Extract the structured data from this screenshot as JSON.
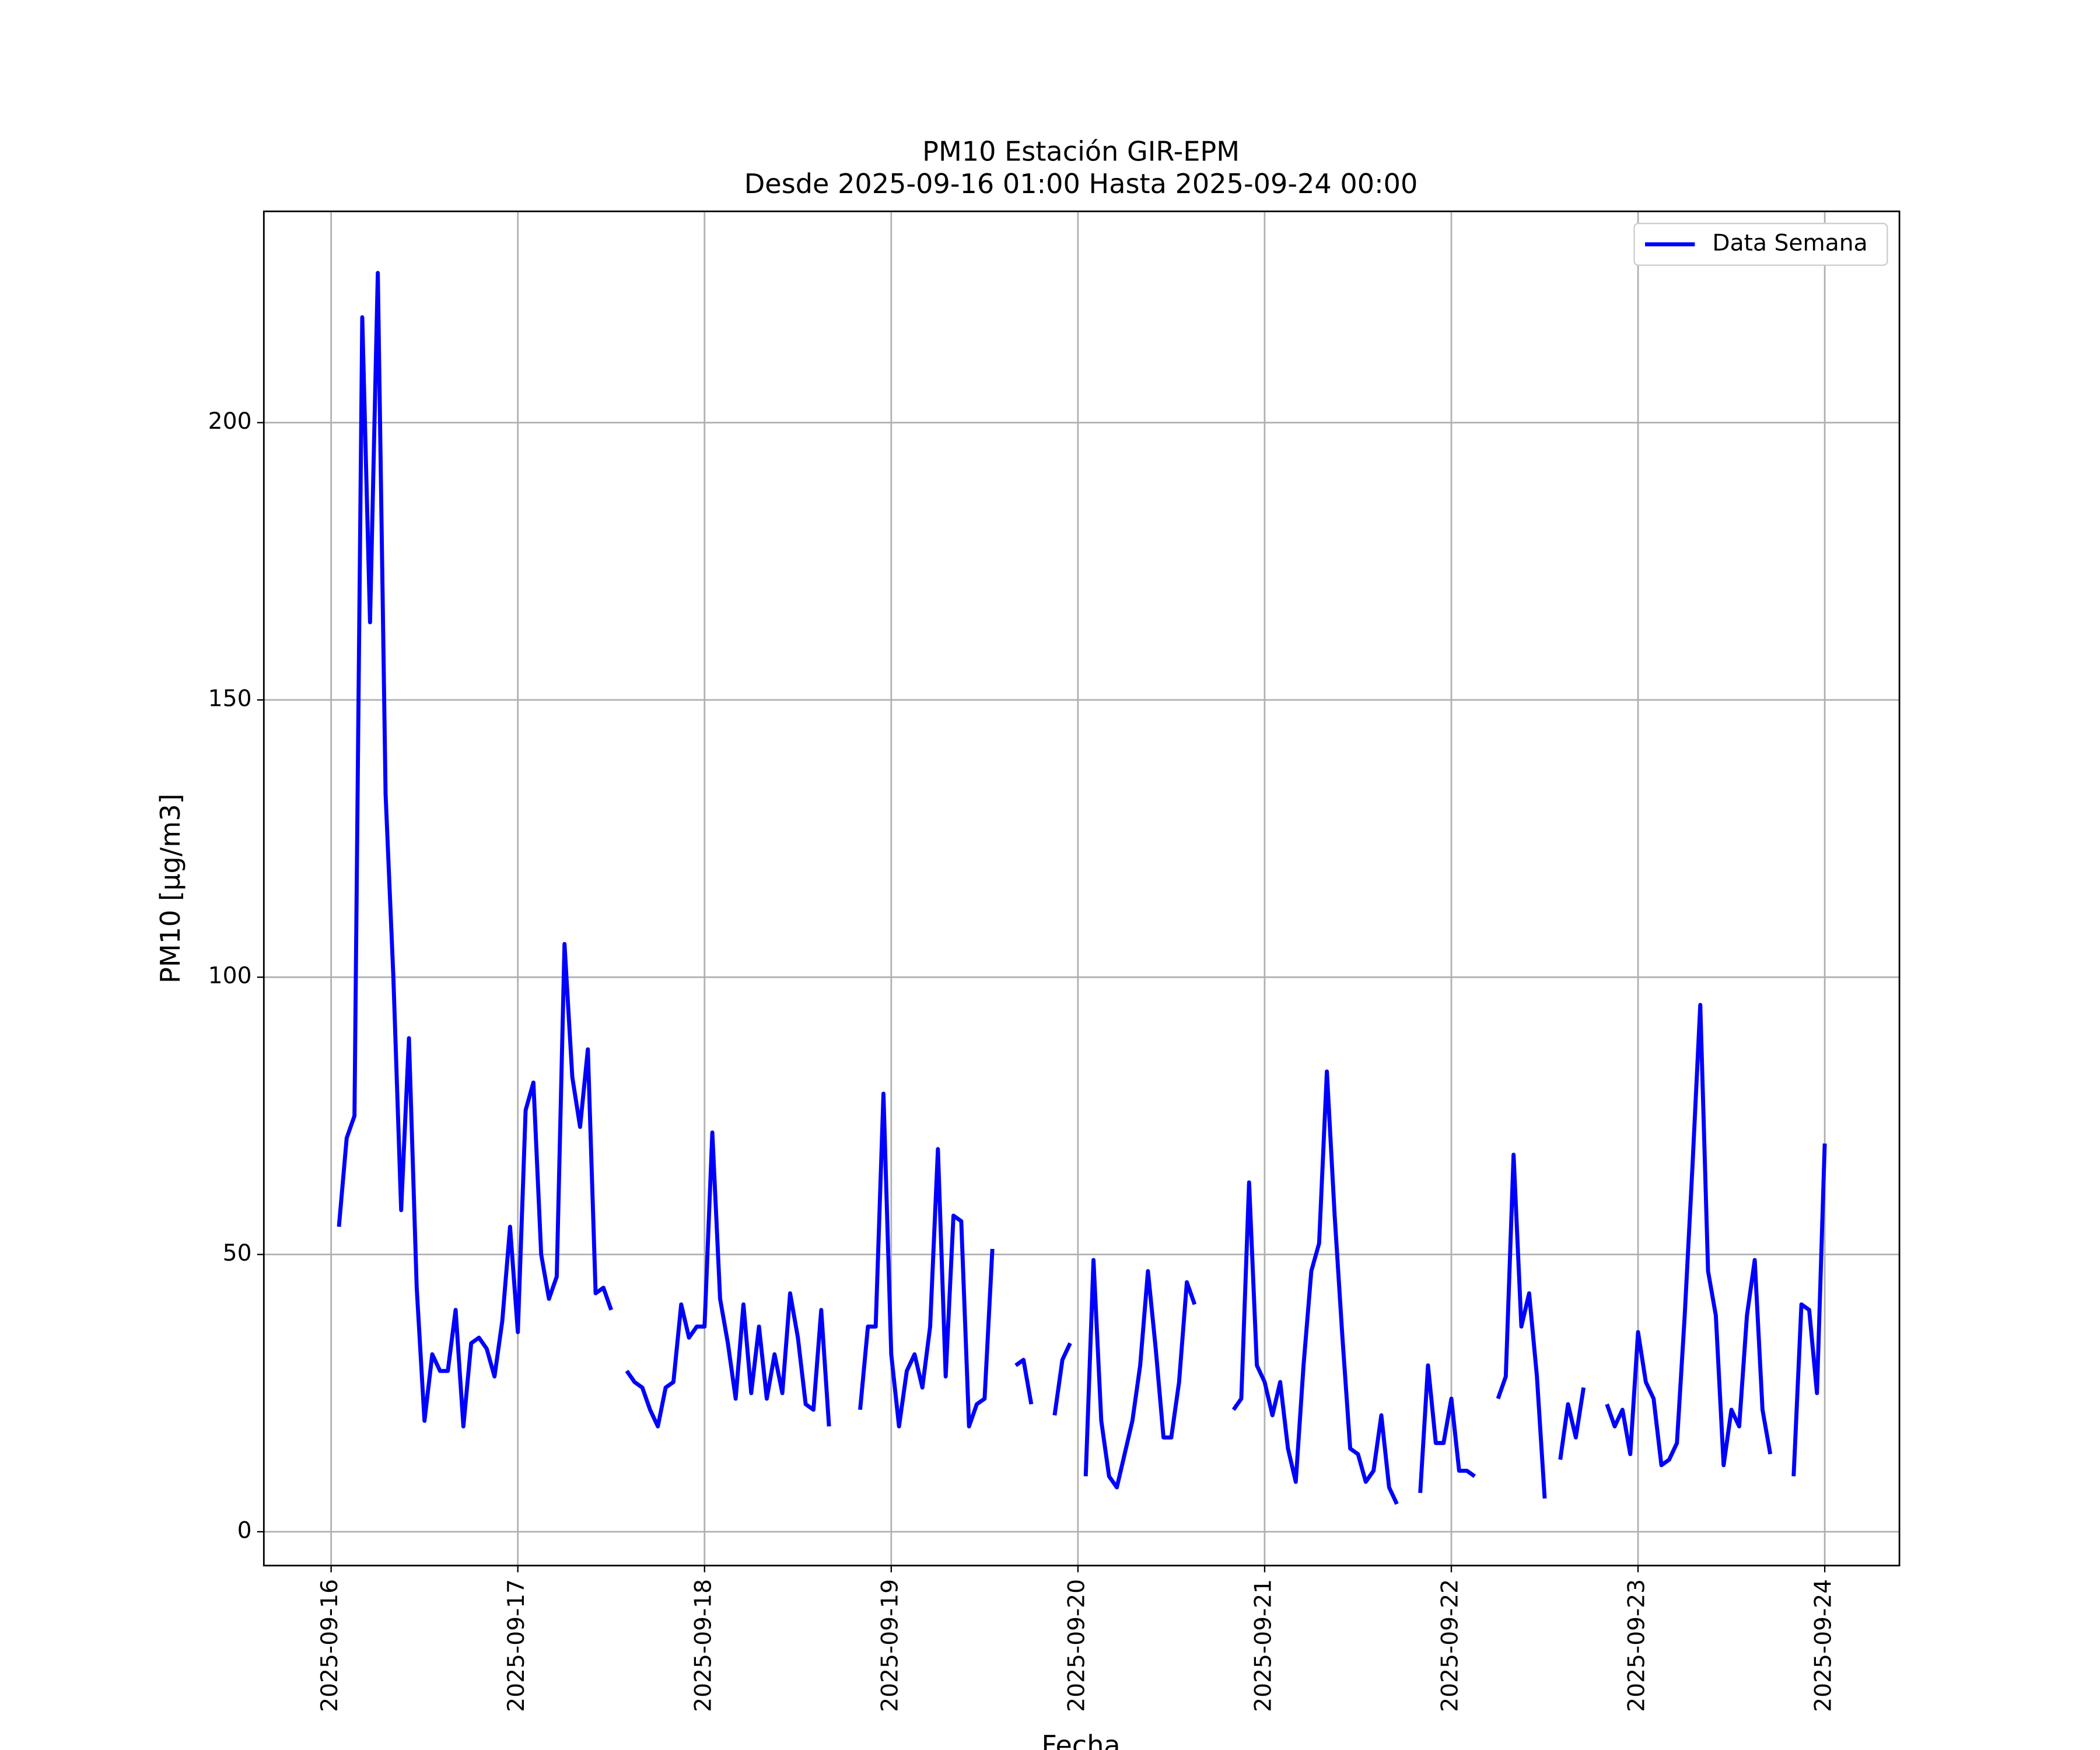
{
  "chart_data": {
    "type": "line",
    "title": "PM10 Estación GIR-EPM",
    "subtitle": "Desde 2025-09-16 01:00 Hasta 2025-09-24 00:00",
    "x_label": "Fecha",
    "y_label": "PM10 [μg/m3]",
    "legend": "upper right",
    "grid": true,
    "xlim": [
      "2025-09-15 15:21",
      "2025-09-24 09:36"
    ],
    "xticks": [
      "2025-09-16",
      "2025-09-17",
      "2025-09-18",
      "2025-09-19",
      "2025-09-20",
      "2025-09-21",
      "2025-09-22",
      "2025-09-23",
      "2025-09-24"
    ],
    "ylim": [
      -6.1,
      238.1
    ],
    "yticks": [
      0,
      50,
      100,
      150,
      200
    ],
    "x": [
      "2025-09-16 01:00",
      "2025-09-16 02:00",
      "2025-09-16 03:00",
      "2025-09-16 04:00",
      "2025-09-16 05:00",
      "2025-09-16 06:00",
      "2025-09-16 07:00",
      "2025-09-16 08:00",
      "2025-09-16 09:00",
      "2025-09-16 10:00",
      "2025-09-16 11:00",
      "2025-09-16 12:00",
      "2025-09-16 13:00",
      "2025-09-16 14:00",
      "2025-09-16 15:00",
      "2025-09-16 16:00",
      "2025-09-16 17:00",
      "2025-09-16 18:00",
      "2025-09-16 19:00",
      "2025-09-16 20:00",
      "2025-09-16 21:00",
      "2025-09-16 22:00",
      "2025-09-16 23:00",
      "2025-09-17 00:00",
      "2025-09-17 01:00",
      "2025-09-17 02:00",
      "2025-09-17 03:00",
      "2025-09-17 04:00",
      "2025-09-17 05:00",
      "2025-09-17 06:00",
      "2025-09-17 07:00",
      "2025-09-17 08:00",
      "2025-09-17 09:00",
      "2025-09-17 10:00",
      "2025-09-17 11:00",
      "2025-09-17 12:00",
      "2025-09-17 13:00",
      "2025-09-17 14:00",
      "2025-09-17 15:00",
      "2025-09-17 16:00",
      "2025-09-17 17:00",
      "2025-09-17 18:00",
      "2025-09-17 19:00",
      "2025-09-17 20:00",
      "2025-09-17 21:00",
      "2025-09-17 22:00",
      "2025-09-17 23:00",
      "2025-09-18 00:00",
      "2025-09-18 01:00",
      "2025-09-18 02:00",
      "2025-09-18 03:00",
      "2025-09-18 04:00",
      "2025-09-18 05:00",
      "2025-09-18 06:00",
      "2025-09-18 07:00",
      "2025-09-18 08:00",
      "2025-09-18 09:00",
      "2025-09-18 10:00",
      "2025-09-18 11:00",
      "2025-09-18 12:00",
      "2025-09-18 13:00",
      "2025-09-18 14:00",
      "2025-09-18 15:00",
      "2025-09-18 16:00",
      "2025-09-18 17:00",
      "2025-09-18 18:00",
      "2025-09-18 19:00",
      "2025-09-18 20:00",
      "2025-09-18 21:00",
      "2025-09-18 22:00",
      "2025-09-18 23:00",
      "2025-09-19 00:00",
      "2025-09-19 01:00",
      "2025-09-19 02:00",
      "2025-09-19 03:00",
      "2025-09-19 04:00",
      "2025-09-19 05:00",
      "2025-09-19 06:00",
      "2025-09-19 07:00",
      "2025-09-19 08:00",
      "2025-09-19 09:00",
      "2025-09-19 10:00",
      "2025-09-19 11:00",
      "2025-09-19 12:00",
      "2025-09-19 13:00",
      "2025-09-19 14:00",
      "2025-09-19 15:00",
      "2025-09-19 16:00",
      "2025-09-19 17:00",
      "2025-09-19 18:00",
      "2025-09-19 19:00",
      "2025-09-19 20:00",
      "2025-09-19 21:00",
      "2025-09-19 22:00",
      "2025-09-19 23:00",
      "2025-09-20 00:00",
      "2025-09-20 01:00",
      "2025-09-20 02:00",
      "2025-09-20 03:00",
      "2025-09-20 04:00",
      "2025-09-20 05:00",
      "2025-09-20 06:00",
      "2025-09-20 07:00",
      "2025-09-20 08:00",
      "2025-09-20 09:00",
      "2025-09-20 10:00",
      "2025-09-20 11:00",
      "2025-09-20 12:00",
      "2025-09-20 13:00",
      "2025-09-20 14:00",
      "2025-09-20 15:00",
      "2025-09-20 16:00",
      "2025-09-20 17:00",
      "2025-09-20 18:00",
      "2025-09-20 19:00",
      "2025-09-20 20:00",
      "2025-09-20 21:00",
      "2025-09-20 22:00",
      "2025-09-20 23:00",
      "2025-09-21 00:00",
      "2025-09-21 01:00",
      "2025-09-21 02:00",
      "2025-09-21 03:00",
      "2025-09-21 04:00",
      "2025-09-21 05:00",
      "2025-09-21 06:00",
      "2025-09-21 07:00",
      "2025-09-21 08:00",
      "2025-09-21 09:00",
      "2025-09-21 10:00",
      "2025-09-21 11:00",
      "2025-09-21 12:00",
      "2025-09-21 13:00",
      "2025-09-21 14:00",
      "2025-09-21 15:00",
      "2025-09-21 16:00",
      "2025-09-21 17:00",
      "2025-09-21 18:00",
      "2025-09-21 19:00",
      "2025-09-21 20:00",
      "2025-09-21 21:00",
      "2025-09-21 22:00",
      "2025-09-21 23:00",
      "2025-09-22 00:00",
      "2025-09-22 01:00",
      "2025-09-22 02:00",
      "2025-09-22 03:00",
      "2025-09-22 04:00",
      "2025-09-22 05:00",
      "2025-09-22 06:00",
      "2025-09-22 07:00",
      "2025-09-22 08:00",
      "2025-09-22 09:00",
      "2025-09-22 10:00",
      "2025-09-22 11:00",
      "2025-09-22 12:00",
      "2025-09-22 13:00",
      "2025-09-22 14:00",
      "2025-09-22 15:00",
      "2025-09-22 16:00",
      "2025-09-22 17:00",
      "2025-09-22 18:00",
      "2025-09-22 19:00",
      "2025-09-22 20:00",
      "2025-09-22 21:00",
      "2025-09-22 22:00",
      "2025-09-22 23:00",
      "2025-09-23 00:00",
      "2025-09-23 01:00",
      "2025-09-23 02:00",
      "2025-09-23 03:00",
      "2025-09-23 04:00",
      "2025-09-23 05:00",
      "2025-09-23 06:00",
      "2025-09-23 07:00",
      "2025-09-23 08:00",
      "2025-09-23 09:00",
      "2025-09-23 10:00",
      "2025-09-23 11:00",
      "2025-09-23 12:00",
      "2025-09-23 13:00",
      "2025-09-23 14:00",
      "2025-09-23 15:00",
      "2025-09-23 16:00",
      "2025-09-23 17:00",
      "2025-09-23 18:00",
      "2025-09-23 19:00",
      "2025-09-23 20:00",
      "2025-09-23 21:00",
      "2025-09-23 22:00",
      "2025-09-23 23:00",
      "2025-09-24 00:00"
    ],
    "series": [
      {
        "name": "Data Semana",
        "color": "#0000ff",
        "values": [
          55,
          71,
          75,
          219,
          164,
          227,
          133,
          100,
          58,
          89,
          44,
          20,
          32,
          29,
          29,
          40,
          19,
          34,
          35,
          33,
          28,
          38,
          55,
          36,
          76,
          81,
          50,
          42,
          46,
          106,
          82,
          73,
          87,
          43,
          44,
          40,
          null,
          29,
          27,
          26,
          22,
          19,
          26,
          27,
          41,
          35,
          37,
          37,
          72,
          42,
          34,
          24,
          41,
          25,
          37,
          24,
          32,
          25,
          43,
          35,
          23,
          22,
          40,
          19,
          null,
          null,
          null,
          22,
          37,
          37,
          79,
          32,
          19,
          29,
          32,
          26,
          37,
          69,
          28,
          57,
          56,
          19,
          23,
          24,
          51,
          null,
          null,
          30,
          31,
          23,
          null,
          null,
          21,
          31,
          34,
          null,
          10,
          49,
          20,
          10,
          8,
          14,
          20,
          30,
          47,
          33,
          17,
          17,
          27,
          45,
          41,
          null,
          null,
          null,
          null,
          22,
          24,
          63,
          30,
          27,
          21,
          27,
          15,
          9,
          30,
          47,
          52,
          83,
          57,
          35,
          15,
          14,
          9,
          11,
          21,
          8,
          5,
          null,
          null,
          7,
          30,
          16,
          16,
          24,
          11,
          11,
          10,
          null,
          null,
          24,
          28,
          68,
          37,
          43,
          28,
          6,
          null,
          13,
          23,
          17,
          26,
          null,
          null,
          23,
          19,
          22,
          14,
          36,
          27,
          24,
          12,
          13,
          16,
          39,
          66,
          95,
          47,
          39,
          12,
          22,
          19,
          39,
          49,
          22,
          14,
          null,
          null,
          10,
          41,
          40,
          25,
          70
        ]
      }
    ]
  }
}
